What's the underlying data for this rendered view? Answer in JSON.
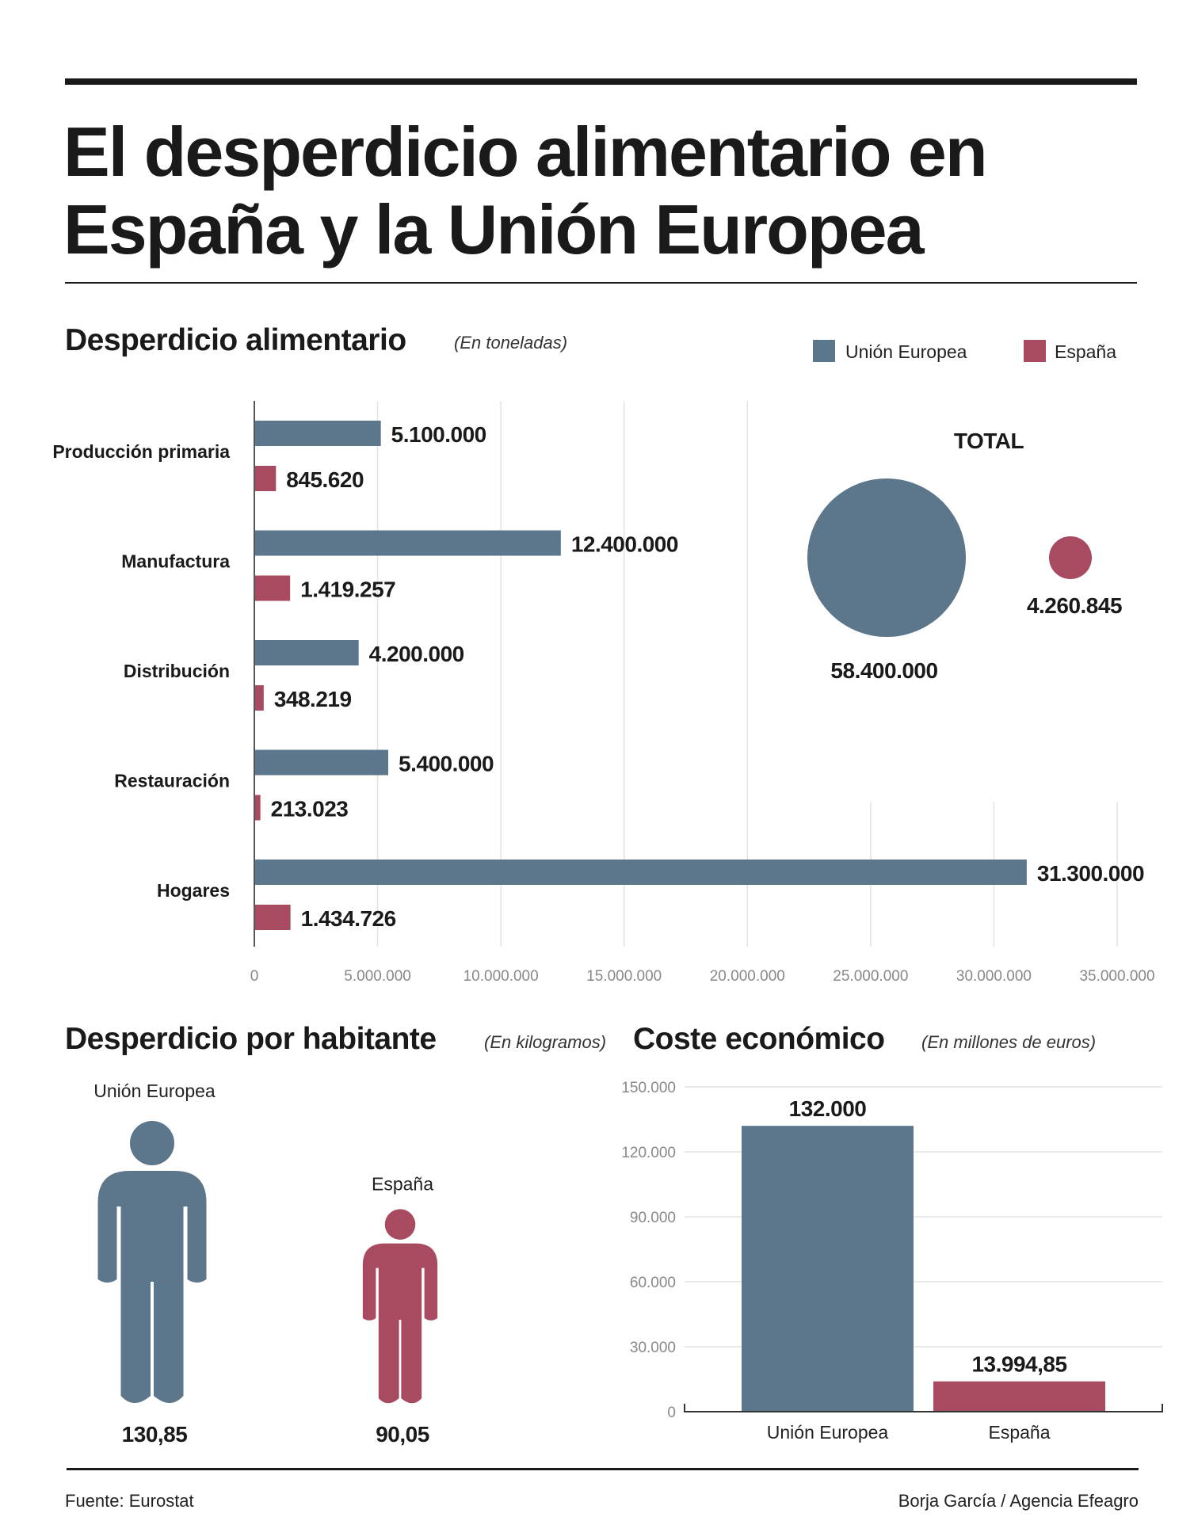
{
  "header": {
    "title_line1": "El desperdicio alimentario en",
    "title_line2": "España y la Unión Europea"
  },
  "colors": {
    "eu": "#5c768b",
    "es": "#a84a60",
    "grid": "#e3e3e3",
    "text": "#1a1a1a"
  },
  "legend": {
    "items": [
      {
        "label": "Unión Europea",
        "color": "#5c768b"
      },
      {
        "label": "España",
        "color": "#a84a60"
      }
    ]
  },
  "chart_data": [
    {
      "type": "bar",
      "orientation": "horizontal",
      "title": "Desperdicio alimentario",
      "subtitle": "(En toneladas)",
      "categories": [
        "Producción primaria",
        "Manufactura",
        "Distribución",
        "Restauración",
        "Hogares"
      ],
      "series": [
        {
          "name": "Unión Europea",
          "values": [
            5100000,
            12400000,
            4200000,
            5400000,
            31300000
          ],
          "labels": [
            "5.100.000",
            "12.400.000",
            "4.200.000",
            "5.400.000",
            "31.300.000"
          ]
        },
        {
          "name": "España",
          "values": [
            845620,
            1419257,
            348219,
            213023,
            1434726
          ],
          "labels": [
            "845.620",
            "1.419.257",
            "348.219",
            "213.023",
            "1.434.726"
          ]
        }
      ],
      "xlim": [
        0,
        35000000
      ],
      "xticks": [
        0,
        5000000,
        10000000,
        15000000,
        20000000,
        25000000,
        30000000,
        35000000
      ],
      "xtick_labels": [
        "0",
        "5.000.000",
        "10.000.000",
        "15.000.000",
        "20.000.000",
        "25.000.000",
        "30.000.000",
        "35.000.000"
      ],
      "grid": true,
      "legend": "top-right"
    },
    {
      "type": "bubble",
      "title": "TOTAL",
      "items": [
        {
          "name": "Unión Europea",
          "value": 58400000,
          "label": "58.400.000"
        },
        {
          "name": "España",
          "value": 4260845,
          "label": "4.260.845"
        }
      ]
    },
    {
      "type": "pictogram",
      "title": "Desperdicio por habitante",
      "subtitle": "(En kilogramos)",
      "items": [
        {
          "name": "Unión Europea",
          "value": 130.85,
          "label": "130,85"
        },
        {
          "name": "España",
          "value": 90.05,
          "label": "90,05"
        }
      ]
    },
    {
      "type": "bar",
      "title": "Coste económico",
      "subtitle": "(En millones de euros)",
      "categories": [
        "Unión Europea",
        "España"
      ],
      "values": [
        132000,
        13994.85
      ],
      "labels": [
        "132.000",
        "13.994,85"
      ],
      "ylim": [
        0,
        150000
      ],
      "yticks": [
        0,
        30000,
        60000,
        90000,
        120000,
        150000
      ],
      "ytick_labels": [
        "0",
        "30.000",
        "60.000",
        "90.000",
        "120.000",
        "150.000"
      ],
      "grid": true
    }
  ],
  "footer": {
    "source": "Fuente: Eurostat",
    "credit": "Borja García / Agencia Efeagro"
  }
}
